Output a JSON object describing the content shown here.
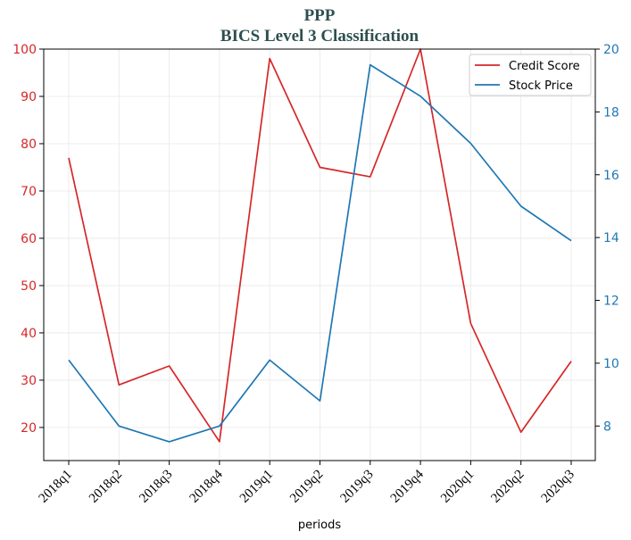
{
  "chart_data": {
    "type": "line",
    "title": "PPP",
    "subtitle": "BICS Level 3 Classification",
    "xlabel": "periods",
    "categories": [
      "2018q1",
      "2018q2",
      "2018q3",
      "2018q4",
      "2019q1",
      "2019q2",
      "2019q3",
      "2019q4",
      "2020q1",
      "2020q2",
      "2020q3"
    ],
    "y_left": {
      "ylim": [
        13,
        100
      ],
      "ticks": [
        20,
        30,
        40,
        50,
        60,
        70,
        80,
        90,
        100
      ],
      "color": "#d62728"
    },
    "y_right": {
      "ylim": [
        6.9,
        20
      ],
      "ticks": [
        8,
        10,
        12,
        14,
        16,
        18,
        20
      ],
      "color": "#1f77b4"
    },
    "series": [
      {
        "name": "Credit Score",
        "axis": "left",
        "color": "#d62728",
        "values": [
          77,
          29,
          33,
          17,
          98,
          75,
          73,
          100,
          42,
          19,
          34
        ]
      },
      {
        "name": "Stock Price",
        "axis": "right",
        "color": "#1f77b4",
        "values": [
          10.1,
          8.0,
          7.5,
          8.0,
          10.1,
          8.8,
          19.5,
          18.5,
          17.0,
          15.0,
          13.9
        ]
      }
    ],
    "grid": true,
    "legend_position": "top-right"
  }
}
